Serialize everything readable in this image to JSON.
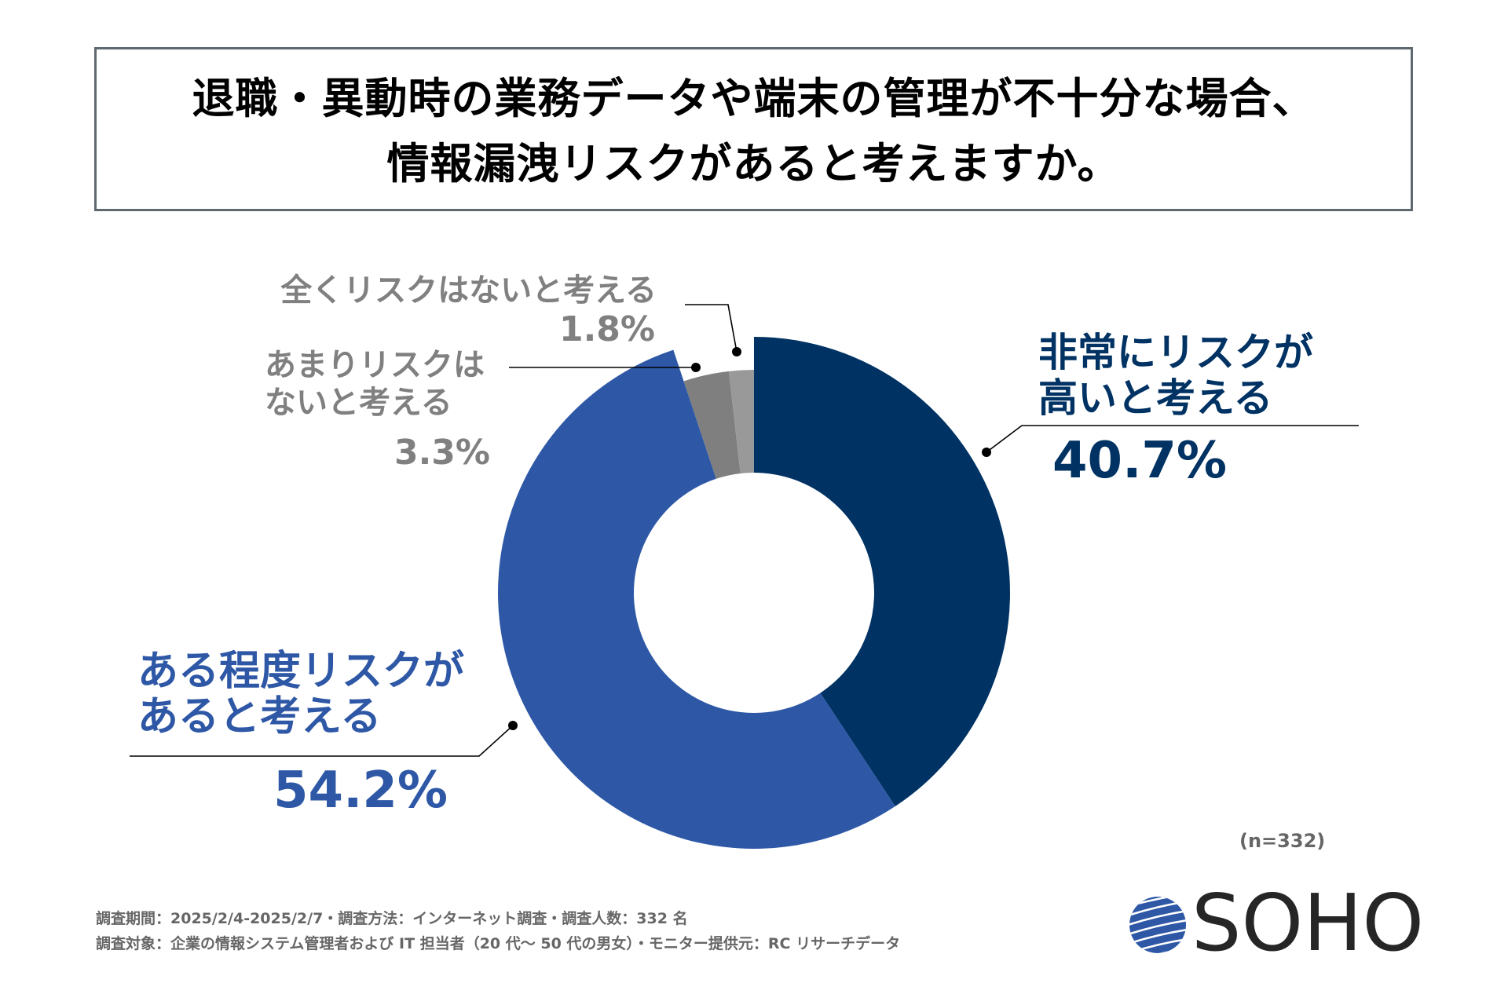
{
  "title": {
    "line1": "退職・異動時の業務データや端末の管理が不十分な場合、",
    "line2": "情報漏洩リスクがあると考えますか。"
  },
  "chart_data": {
    "type": "pie",
    "variant": "donut",
    "title": "退職・異動時の業務データや端末の管理が不十分な場合、情報漏洩リスクがあると考えますか。",
    "unit": "%",
    "start": "12 o'clock, clockwise",
    "slices": [
      {
        "label_lines": [
          "非常にリスクが",
          "高いと考える"
        ],
        "value": 40.7,
        "value_label": "40.7%",
        "color": "#003263",
        "text_color": "#003263",
        "emphasis": true
      },
      {
        "label_lines": [
          "ある程度リスクが",
          "あると考える"
        ],
        "value": 54.2,
        "value_label": "54.2%",
        "color": "#2e58a6",
        "text_color": "#2e58a6",
        "emphasis": true
      },
      {
        "label_lines": [
          "あまりリスクは",
          "ないと考える"
        ],
        "value": 3.3,
        "value_label": "3.3%",
        "color": "#7f7f7f",
        "text_color": "#808080",
        "emphasis": false
      },
      {
        "label_lines": [
          "全くリスクはないと考える"
        ],
        "value": 1.8,
        "value_label": "1.8%",
        "color": "#999999",
        "text_color": "#808080",
        "emphasis": false
      }
    ],
    "sample_note": "(n=332)"
  },
  "footer": {
    "line1": "調査期間：2025/2/4-2025/2/7・調査方法：インターネット調査・調査人数：332 名",
    "line2": "調査対象：企業の情報システム管理者および IT 担当者（20 代～ 50 代の男女）・モニター提供元：RC リサーチデータ"
  },
  "logo": {
    "text": "SOHO",
    "globe_color": "#2e58a6",
    "text_color": "#262626"
  },
  "colors": {
    "frame_border": "#5f6970",
    "footer_text": "#666666"
  }
}
